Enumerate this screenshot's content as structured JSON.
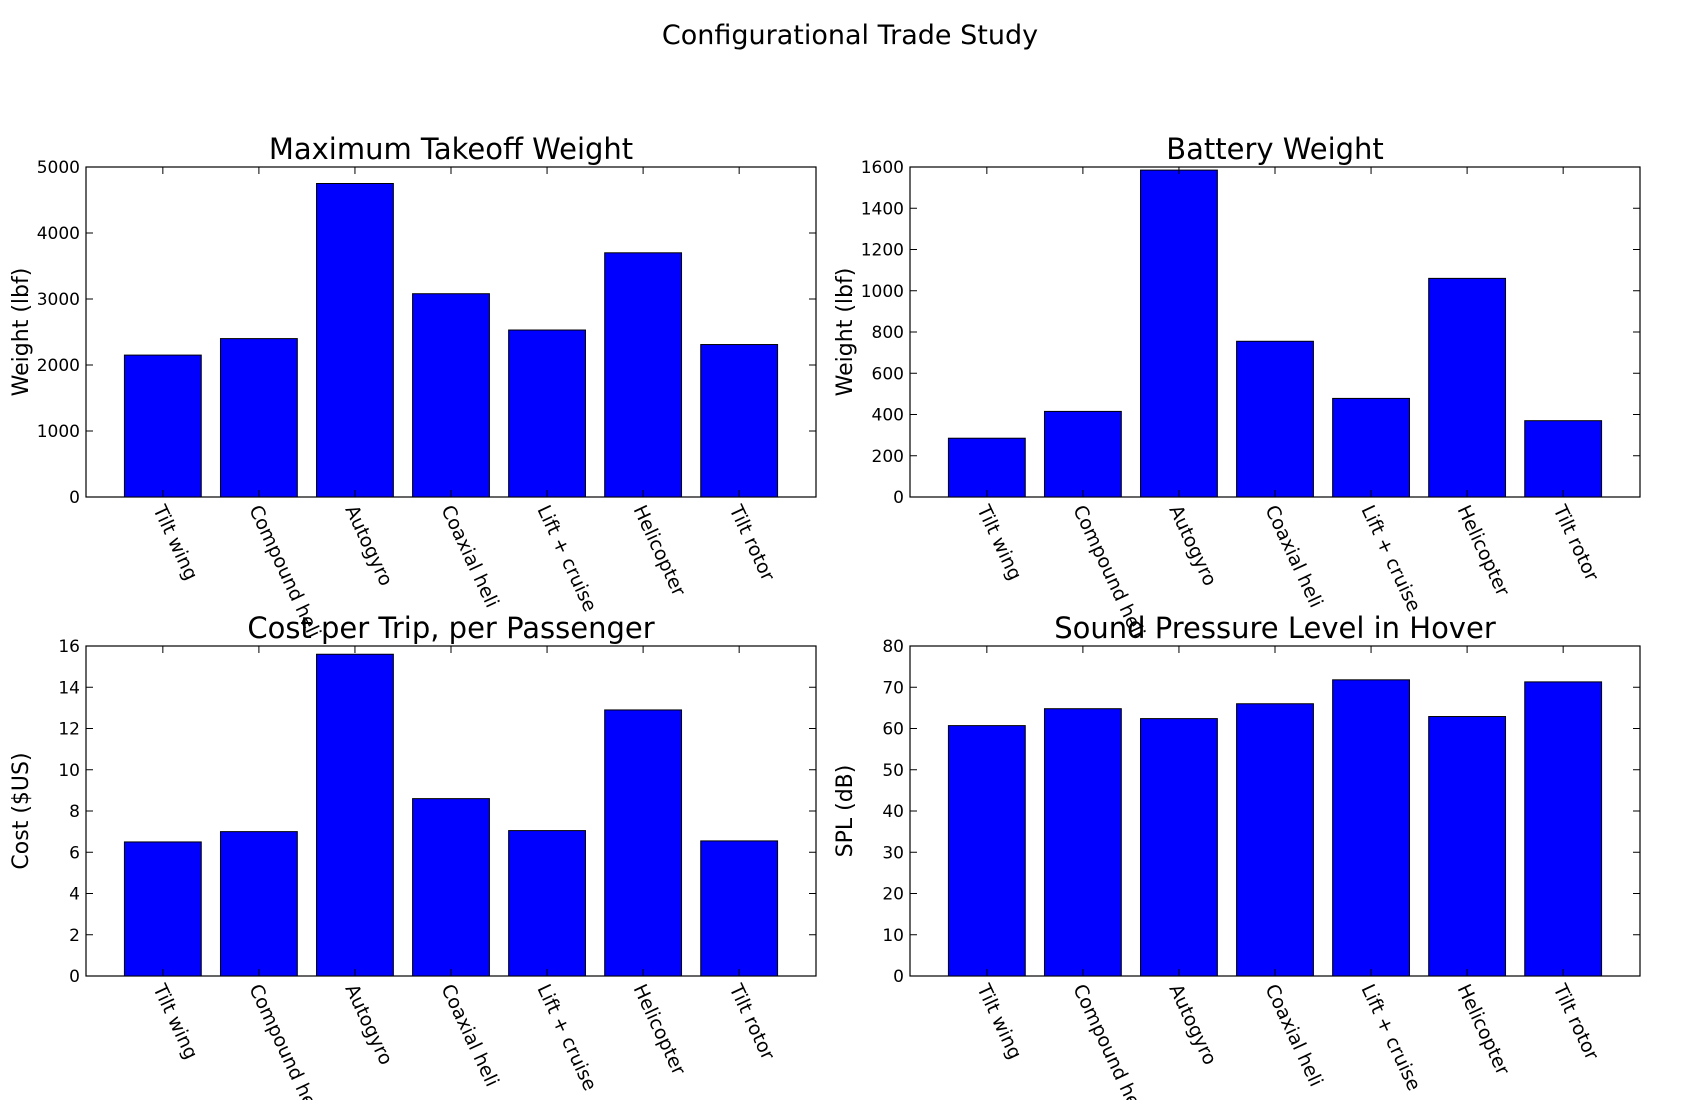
{
  "figure": {
    "title": "Configurational Trade Study"
  },
  "style": {
    "bar_color": "#0000ff",
    "edge_color": "#000000",
    "background": "#ffffff"
  },
  "chart_data": [
    {
      "type": "bar",
      "title": "Maximum Takeoff Weight",
      "xlabel": "",
      "ylabel": "Weight (lbf)",
      "ylim": [
        0,
        5000
      ],
      "yticks": [
        0,
        1000,
        2000,
        3000,
        4000,
        5000
      ],
      "categories": [
        "Tilt wing",
        "Compound heli",
        "Autogyro",
        "Coaxial heli",
        "Lift + cruise",
        "Helicopter",
        "Tilt rotor"
      ],
      "values": [
        2150,
        2400,
        4750,
        3080,
        2530,
        3700,
        2310
      ],
      "grid": false
    },
    {
      "type": "bar",
      "title": "Battery Weight",
      "xlabel": "",
      "ylabel": "Weight (lbf)",
      "ylim": [
        0,
        1600
      ],
      "yticks": [
        0,
        200,
        400,
        600,
        800,
        1000,
        1200,
        1400,
        1600
      ],
      "categories": [
        "Tilt wing",
        "Compound heli",
        "Autogyro",
        "Coaxial heli",
        "Lift + cruise",
        "Helicopter",
        "Tilt rotor"
      ],
      "values": [
        285,
        415,
        1585,
        755,
        478,
        1060,
        370
      ],
      "grid": false
    },
    {
      "type": "bar",
      "title": "Cost per Trip, per Passenger",
      "xlabel": "",
      "ylabel": "Cost ($US)",
      "ylim": [
        0,
        16
      ],
      "yticks": [
        0,
        2,
        4,
        6,
        8,
        10,
        12,
        14,
        16
      ],
      "categories": [
        "Tilt wing",
        "Compound heli",
        "Autogyro",
        "Coaxial heli",
        "Lift + cruise",
        "Helicopter",
        "Tilt rotor"
      ],
      "values": [
        6.5,
        7.0,
        15.6,
        8.6,
        7.05,
        12.9,
        6.55
      ],
      "grid": false
    },
    {
      "type": "bar",
      "title": "Sound Pressure Level in Hover",
      "xlabel": "",
      "ylabel": "SPL (dB)",
      "ylim": [
        0,
        80
      ],
      "yticks": [
        0,
        10,
        20,
        30,
        40,
        50,
        60,
        70,
        80
      ],
      "categories": [
        "Tilt wing",
        "Compound heli",
        "Autogyro",
        "Coaxial heli",
        "Lift + cruise",
        "Helicopter",
        "Tilt rotor"
      ],
      "values": [
        60.7,
        64.8,
        62.4,
        66.0,
        71.8,
        62.9,
        71.3
      ],
      "grid": false
    }
  ]
}
